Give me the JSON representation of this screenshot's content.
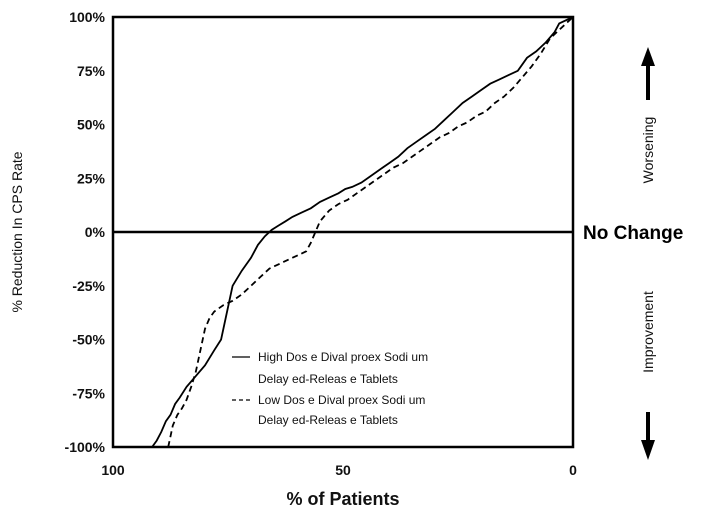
{
  "chart_data": {
    "type": "line",
    "xlabel": "% of Patients",
    "ylabel": "% Reduction In CPS Rate",
    "xlim": [
      100,
      0
    ],
    "ylim": [
      -100,
      100
    ],
    "x_ticks": [
      "100",
      "50",
      "0"
    ],
    "x_tick_values": [
      100,
      50,
      0
    ],
    "y_ticks": [
      "100%",
      "75%",
      "50%",
      "25%",
      "0%",
      "-25%",
      "-50%",
      "-75%",
      "-100%"
    ],
    "y_tick_values": [
      100,
      75,
      50,
      25,
      0,
      -25,
      -50,
      -75,
      -100
    ],
    "reference_line": {
      "y": 0,
      "label": "No Change"
    },
    "side_labels": {
      "upper": "Worsening",
      "lower": "Improvement"
    },
    "legend_position": "bottom-center",
    "series": [
      {
        "name": "High Dose Divalproex Sodium Delayed-Release Tablets",
        "legend_lines": [
          "High Dos e Dival proex Sodi um",
          "Delay ed-Releas e Tablets"
        ],
        "style": "solid",
        "color": "#000000",
        "x": [
          91.5,
          90.5,
          89.5,
          88.5,
          87.5,
          86.5,
          85.5,
          84,
          82,
          80,
          78,
          76.5,
          75.5,
          74,
          72,
          70,
          68.5,
          67,
          65.5,
          64,
          62.5,
          61,
          59,
          57,
          55,
          53,
          51,
          49.5,
          48,
          46,
          44,
          42,
          40,
          38,
          36,
          34,
          32,
          30,
          28,
          26,
          24,
          22,
          20,
          18,
          16,
          14,
          12,
          11,
          10,
          8,
          6,
          4,
          3,
          0
        ],
        "y": [
          -100,
          -97,
          -93,
          -88,
          -85,
          -80,
          -77,
          -72,
          -67,
          -62,
          -55,
          -50,
          -40,
          -25,
          -18,
          -12,
          -6,
          -2,
          1,
          3,
          5,
          7,
          9,
          11,
          14,
          16,
          18,
          20,
          21,
          23,
          26,
          29,
          32,
          35,
          39,
          42,
          45,
          48,
          52,
          56,
          60,
          63,
          66,
          69,
          71,
          73,
          75,
          78,
          81,
          84,
          88,
          93,
          97,
          100
        ]
      },
      {
        "name": "Low Dose Divalproex Sodium Delayed-Release Tablets",
        "legend_lines": [
          "Low Dos e Dival proex Sodi um",
          "Delay ed-Releas e Tablets"
        ],
        "style": "dashed",
        "color": "#000000",
        "x": [
          88,
          87.5,
          87,
          86,
          85,
          84,
          83,
          82,
          81,
          80,
          79,
          78,
          76,
          74,
          72,
          70,
          68,
          66,
          64,
          62,
          60,
          58,
          57,
          56,
          55,
          53,
          51,
          49,
          47,
          45,
          43,
          41,
          39,
          37,
          35,
          33,
          31,
          29,
          27,
          25,
          23,
          21,
          19,
          17,
          15,
          13,
          11,
          9,
          7,
          5,
          3,
          0
        ],
        "y": [
          -100,
          -95,
          -90,
          -85,
          -82,
          -78,
          -72,
          -65,
          -55,
          -45,
          -40,
          -37,
          -34,
          -32,
          -29,
          -25,
          -21,
          -17,
          -15,
          -13,
          -11,
          -9,
          -5,
          0,
          5,
          10,
          13,
          15,
          18,
          21,
          24,
          27,
          30,
          32,
          35,
          38,
          41,
          44,
          46,
          49,
          51,
          54,
          56,
          60,
          63,
          67,
          72,
          77,
          83,
          90,
          94,
          100
        ]
      }
    ]
  }
}
